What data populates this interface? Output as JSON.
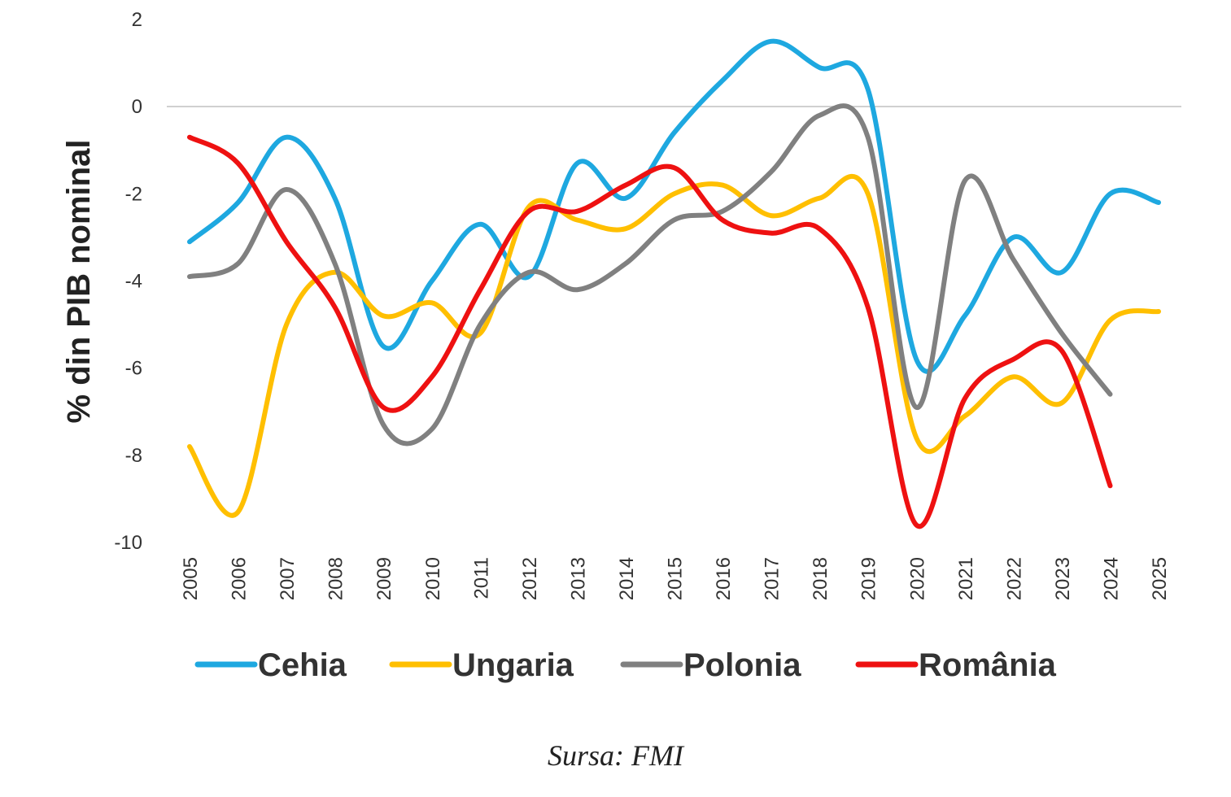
{
  "chart_data": {
    "type": "line",
    "title": "",
    "xlabel": "",
    "ylabel": "% din PIB nominal",
    "ylim": [
      -10,
      2
    ],
    "yticks": [
      2,
      0,
      -2,
      -4,
      -6,
      -8,
      -10
    ],
    "categories": [
      "2005",
      "2006",
      "2007",
      "2008",
      "2009",
      "2010",
      "2011",
      "2012",
      "2013",
      "2014",
      "2015",
      "2016",
      "2017",
      "2018",
      "2019",
      "2020",
      "2021",
      "2022",
      "2023",
      "2024",
      "2025"
    ],
    "legend_position": "bottom",
    "grid": "zero line only",
    "series": [
      {
        "name": "Cehia",
        "color": "#1EA8E0",
        "values": [
          -3.1,
          -2.2,
          -0.7,
          -2.1,
          -5.5,
          -4.0,
          -2.7,
          -3.9,
          -1.3,
          -2.1,
          -0.6,
          0.6,
          1.5,
          0.9,
          0.4,
          -5.8,
          -4.8,
          -3.0,
          -3.8,
          -2.0,
          -2.2
        ]
      },
      {
        "name": "Ungaria",
        "color": "#FFBF00",
        "values": [
          -7.8,
          -9.3,
          -5.0,
          -3.8,
          -4.8,
          -4.5,
          -5.2,
          -2.3,
          -2.6,
          -2.8,
          -2.0,
          -1.8,
          -2.5,
          -2.1,
          -2.0,
          -7.6,
          -7.1,
          -6.2,
          -6.8,
          -4.9,
          -4.7
        ]
      },
      {
        "name": "Polonia",
        "color": "#808080",
        "values": [
          -3.9,
          -3.6,
          -1.9,
          -3.6,
          -7.3,
          -7.4,
          -5.0,
          -3.8,
          -4.2,
          -3.6,
          -2.6,
          -2.4,
          -1.5,
          -0.2,
          -0.7,
          -6.9,
          -1.7,
          -3.5,
          -5.2,
          -6.6,
          null
        ]
      },
      {
        "name": "România",
        "color": "#EE1111",
        "values": [
          -0.7,
          -1.3,
          -3.1,
          -4.6,
          -6.9,
          -6.2,
          -4.2,
          -2.4,
          -2.4,
          -1.8,
          -1.4,
          -2.6,
          -2.9,
          -2.8,
          -4.6,
          -9.6,
          -6.7,
          -5.8,
          -5.6,
          -8.7,
          null
        ]
      }
    ]
  },
  "source": "Sursa: FMI"
}
